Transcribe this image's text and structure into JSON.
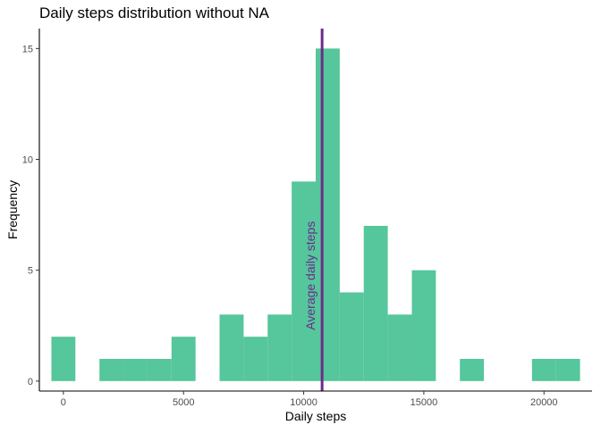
{
  "chart_data": {
    "type": "bar",
    "title": "Daily steps distribution without NA",
    "xlabel": "Daily steps",
    "ylabel": "Frequency",
    "xlim": [
      -1000,
      22000
    ],
    "ylim": [
      -0.45,
      15.9
    ],
    "xticks": [
      0,
      5000,
      10000,
      15000,
      20000
    ],
    "yticks": [
      0,
      5,
      10,
      15
    ],
    "bin_width": 1000,
    "bins": [
      {
        "x0": -500,
        "x1": 500,
        "count": 2
      },
      {
        "x0": 500,
        "x1": 1500,
        "count": 0
      },
      {
        "x0": 1500,
        "x1": 2500,
        "count": 1
      },
      {
        "x0": 2500,
        "x1": 3500,
        "count": 1
      },
      {
        "x0": 3500,
        "x1": 4500,
        "count": 1
      },
      {
        "x0": 4500,
        "x1": 5500,
        "count": 2
      },
      {
        "x0": 5500,
        "x1": 6500,
        "count": 0
      },
      {
        "x0": 6500,
        "x1": 7500,
        "count": 3
      },
      {
        "x0": 7500,
        "x1": 8500,
        "count": 2
      },
      {
        "x0": 8500,
        "x1": 9500,
        "count": 3
      },
      {
        "x0": 9500,
        "x1": 10500,
        "count": 9
      },
      {
        "x0": 10500,
        "x1": 11500,
        "count": 15
      },
      {
        "x0": 11500,
        "x1": 12500,
        "count": 4
      },
      {
        "x0": 12500,
        "x1": 13500,
        "count": 7
      },
      {
        "x0": 13500,
        "x1": 14500,
        "count": 3
      },
      {
        "x0": 14500,
        "x1": 15500,
        "count": 5
      },
      {
        "x0": 15500,
        "x1": 16500,
        "count": 0
      },
      {
        "x0": 16500,
        "x1": 17500,
        "count": 1
      },
      {
        "x0": 17500,
        "x1": 18500,
        "count": 0
      },
      {
        "x0": 18500,
        "x1": 19500,
        "count": 0
      },
      {
        "x0": 19500,
        "x1": 20500,
        "count": 1
      },
      {
        "x0": 20500,
        "x1": 21500,
        "count": 1
      }
    ],
    "mean_line": {
      "value": 10766,
      "label": "Average daily steps",
      "color": "#6a2c8a"
    },
    "bar_color": "#56c69c",
    "grid": false,
    "legend": "none"
  }
}
